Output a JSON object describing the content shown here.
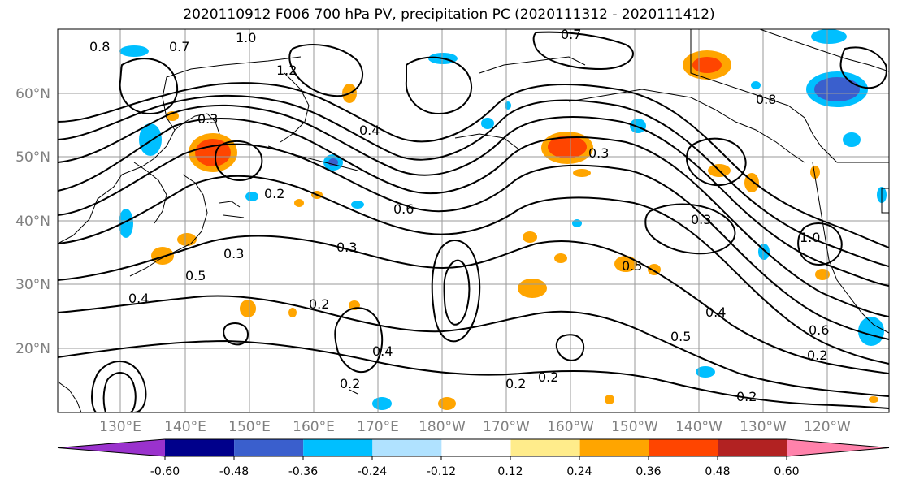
{
  "title": "2020110912 F006 700 hPa PV, precipitation PC (2020111312 - 2020111412)",
  "lat_labels": [
    "60°N",
    "50°N",
    "40°N",
    "30°N",
    "20°N"
  ],
  "lon_labels": [
    "130°E",
    "140°E",
    "150°E",
    "160°E",
    "170°E",
    "180°W",
    "170°W",
    "160°W",
    "150°W",
    "140°W",
    "130°W",
    "120°W"
  ],
  "colorbar": {
    "colors": [
      "#9a32cd",
      "#00008b",
      "#3a5fcd",
      "#00bfff",
      "#b0e2ff",
      "#ffffff",
      "#ffec8b",
      "#ffa500",
      "#ff4500",
      "#b22222",
      "#ff82ab"
    ],
    "tick_labels": [
      "-0.60",
      "-0.48",
      "-0.36",
      "-0.24",
      "-0.12",
      "0.12",
      "0.24",
      "0.36",
      "0.48",
      "0.60"
    ]
  },
  "pv_contour_labels": [
    "0.8",
    "0.7",
    "1.0",
    "1.2",
    "0.3",
    "0.3",
    "0.2",
    "0.4",
    "0.6",
    "0.3",
    "0.5",
    "0.4",
    "0.2",
    "0.3",
    "0.5",
    "0.4",
    "0.5",
    "0.6",
    "0.2",
    "0.2",
    "0.2",
    "0.2",
    "0.2",
    "0.4",
    "0.3",
    "0.8",
    "1.0",
    "0.7"
  ]
}
